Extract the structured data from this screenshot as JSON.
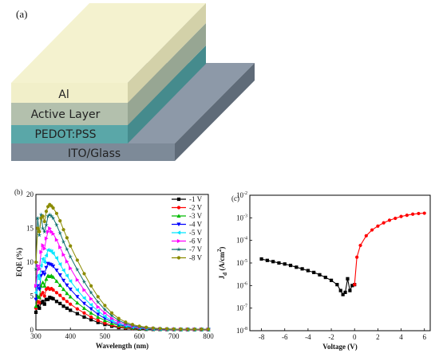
{
  "panel_a": {
    "label": "(a)",
    "layers": [
      {
        "name": "Al",
        "top": "#f4f2cf",
        "front": "#f1efc9",
        "side": "#d3d1a9"
      },
      {
        "name": "Active Layer",
        "top": "#b9c4b1",
        "front": "#b3c0ad",
        "side": "#97a693"
      },
      {
        "name": "PEDOT:PSS",
        "top": "#59a8a9",
        "front": "#5aa7a8",
        "side": "#458b8d"
      },
      {
        "name": "ITO/Glass",
        "top": "#8d99a8",
        "front": "#7d8a98",
        "side": "#5f6b78"
      }
    ]
  },
  "chart_data": [
    {
      "type": "line",
      "panel_label": "(b)",
      "xlabel": "Wavelength (nm)",
      "ylabel": "EQE (%)",
      "xlim": [
        300,
        800
      ],
      "ylim": [
        0,
        20
      ],
      "xticks": [
        300,
        400,
        500,
        600,
        700,
        800
      ],
      "yticks": [
        0,
        5,
        10,
        15,
        20
      ],
      "grid": false,
      "legend": "top-right",
      "x": [
        300,
        305,
        310,
        315,
        320,
        325,
        330,
        335,
        340,
        345,
        350,
        360,
        370,
        380,
        390,
        400,
        420,
        440,
        460,
        480,
        500,
        520,
        540,
        560,
        580,
        600,
        620,
        640,
        660,
        680,
        700,
        720,
        740,
        760,
        780,
        800
      ],
      "series": [
        {
          "name": "-1 V",
          "color": "#000000",
          "marker": "square",
          "values": [
            2.6,
            3.5,
            3.2,
            4.0,
            4.2,
            3.8,
            4.5,
            4.5,
            4.8,
            4.7,
            4.6,
            4.2,
            3.9,
            3.5,
            3.2,
            2.9,
            2.4,
            1.9,
            1.5,
            1.1,
            0.8,
            0.55,
            0.35,
            0.25,
            0.18,
            0.12,
            0.09,
            0.07,
            0.06,
            0.05,
            0.05,
            0.04,
            0.04,
            0.04,
            0.04,
            0.04
          ]
        },
        {
          "name": "-2 V",
          "color": "#ff0000",
          "marker": "circle",
          "values": [
            3.2,
            4.2,
            4.0,
            5.2,
            5.5,
            5.0,
            6.0,
            6.2,
            6.0,
            6.1,
            5.9,
            5.5,
            5.1,
            4.6,
            4.2,
            3.8,
            3.1,
            2.5,
            1.9,
            1.4,
            1.0,
            0.7,
            0.45,
            0.3,
            0.22,
            0.15,
            0.11,
            0.09,
            0.07,
            0.06,
            0.06,
            0.05,
            0.05,
            0.05,
            0.05,
            0.05
          ]
        },
        {
          "name": "-3 V",
          "color": "#00bb00",
          "marker": "triangle-up",
          "values": [
            3.5,
            5.0,
            4.8,
            6.5,
            7.0,
            6.5,
            7.5,
            8.0,
            7.9,
            8.0,
            7.8,
            7.2,
            6.6,
            6.0,
            5.4,
            4.9,
            4.0,
            3.2,
            2.5,
            1.9,
            1.4,
            0.95,
            0.65,
            0.45,
            0.3,
            0.2,
            0.15,
            0.12,
            0.09,
            0.08,
            0.07,
            0.06,
            0.06,
            0.06,
            0.06,
            0.06
          ]
        },
        {
          "name": "-4 V",
          "color": "#0000ff",
          "marker": "triangle-down",
          "values": [
            4.5,
            6.5,
            6.0,
            8.0,
            8.5,
            8.2,
            9.2,
            9.8,
            9.7,
            9.6,
            9.4,
            8.8,
            8.1,
            7.3,
            6.6,
            6.0,
            4.9,
            3.9,
            3.1,
            2.3,
            1.7,
            1.2,
            0.8,
            0.55,
            0.38,
            0.26,
            0.18,
            0.14,
            0.11,
            0.09,
            0.08,
            0.07,
            0.07,
            0.07,
            0.07,
            0.07
          ]
        },
        {
          "name": "-5 V",
          "color": "#00e5ff",
          "marker": "triangle-left",
          "values": [
            5.5,
            8.0,
            7.5,
            9.5,
            10.5,
            10.0,
            11.0,
            11.8,
            11.7,
            11.6,
            11.3,
            10.6,
            9.7,
            8.8,
            8.0,
            7.2,
            5.9,
            4.7,
            3.7,
            2.8,
            2.0,
            1.4,
            0.95,
            0.65,
            0.45,
            0.3,
            0.21,
            0.16,
            0.12,
            0.1,
            0.09,
            0.08,
            0.08,
            0.08,
            0.08,
            0.08
          ]
        },
        {
          "name": "-6 V",
          "color": "#ff00ff",
          "marker": "triangle-right",
          "values": [
            6.5,
            9.5,
            9.0,
            11.5,
            12.5,
            12.0,
            13.5,
            14.5,
            15.0,
            14.5,
            14.2,
            13.3,
            12.2,
            11.1,
            10.1,
            9.1,
            7.4,
            5.9,
            4.6,
            3.4,
            2.5,
            1.7,
            1.15,
            0.8,
            0.55,
            0.37,
            0.26,
            0.19,
            0.14,
            0.11,
            0.1,
            0.09,
            0.09,
            0.09,
            0.09,
            0.09
          ]
        },
        {
          "name": "-7 V",
          "color": "#0f6e6e",
          "marker": "star",
          "values": [
            9.0,
            16.5,
            14.0,
            17.0,
            15.0,
            14.5,
            15.5,
            16.8,
            17.0,
            16.8,
            16.5,
            15.5,
            14.3,
            13.0,
            11.9,
            10.8,
            8.9,
            7.1,
            5.5,
            4.1,
            3.0,
            2.1,
            1.4,
            0.95,
            0.65,
            0.44,
            0.3,
            0.22,
            0.16,
            0.13,
            0.11,
            0.1,
            0.1,
            0.1,
            0.1,
            0.1
          ]
        },
        {
          "name": "-8 V",
          "color": "#8b8b00",
          "marker": "circle",
          "values": [
            10.0,
            15.0,
            14.5,
            16.5,
            16.8,
            16.0,
            17.5,
            18.2,
            18.5,
            18.3,
            18.0,
            17.2,
            16.1,
            14.8,
            13.6,
            12.4,
            10.3,
            8.3,
            6.5,
            4.9,
            3.6,
            2.5,
            1.7,
            1.15,
            0.8,
            0.55,
            0.38,
            0.27,
            0.2,
            0.16,
            0.13,
            0.12,
            0.11,
            0.11,
            0.11,
            0.11
          ]
        }
      ]
    },
    {
      "type": "line",
      "panel_label": "(c)",
      "xlabel": "Voltage (V)",
      "ylabel": "Jd (A/cm2)",
      "ylabel_main": "J",
      "ylabel_sub": "d",
      "ylabel_unit": " (A/cm",
      "ylabel_sup": "2",
      "ylabel_close": ")",
      "scale_y": "log",
      "xlim": [
        -9,
        6.5
      ],
      "ylim_exp": [
        -8,
        -2
      ],
      "xticks": [
        -8,
        -6,
        -4,
        -2,
        0,
        2,
        4,
        6
      ],
      "ytick_base": "10",
      "ytick_exps": [
        "-8",
        "-7",
        "-6",
        "-5",
        "-4",
        "-3",
        "-2"
      ],
      "grid": false,
      "legend": "none",
      "series": [
        {
          "name": "",
          "color": "#000000",
          "marker": "square",
          "x": [
            -8,
            -7.5,
            -7,
            -6.5,
            -6,
            -5.5,
            -5,
            -4.5,
            -4,
            -3.5,
            -3,
            -2.5,
            -2,
            -1.5,
            -1.2,
            -1.0,
            -0.8,
            -0.6,
            -0.4,
            -0.2,
            0
          ],
          "y": [
            1.5e-05,
            1.3e-05,
            1.15e-05,
            1e-05,
            9e-06,
            7.8e-06,
            6.5e-06,
            5.5e-06,
            4.6e-06,
            3.8e-06,
            3e-06,
            2.3e-06,
            1.7e-06,
            1.1e-06,
            6e-07,
            4e-07,
            5e-07,
            2e-06,
            6e-07,
            1e-06,
            1.1e-06
          ]
        },
        {
          "name": "",
          "color": "#ff0000",
          "marker": "circle",
          "x": [
            0,
            0.2,
            0.5,
            1.0,
            1.5,
            2.0,
            2.5,
            3.0,
            3.5,
            4.0,
            4.5,
            5.0,
            5.5,
            6.0
          ],
          "y": [
            1.1e-06,
            1.8e-05,
            6e-05,
            0.00016,
            0.00029,
            0.00043,
            0.0006,
            0.00078,
            0.00095,
            0.00115,
            0.0013,
            0.00145,
            0.00155,
            0.0016
          ]
        }
      ]
    }
  ]
}
